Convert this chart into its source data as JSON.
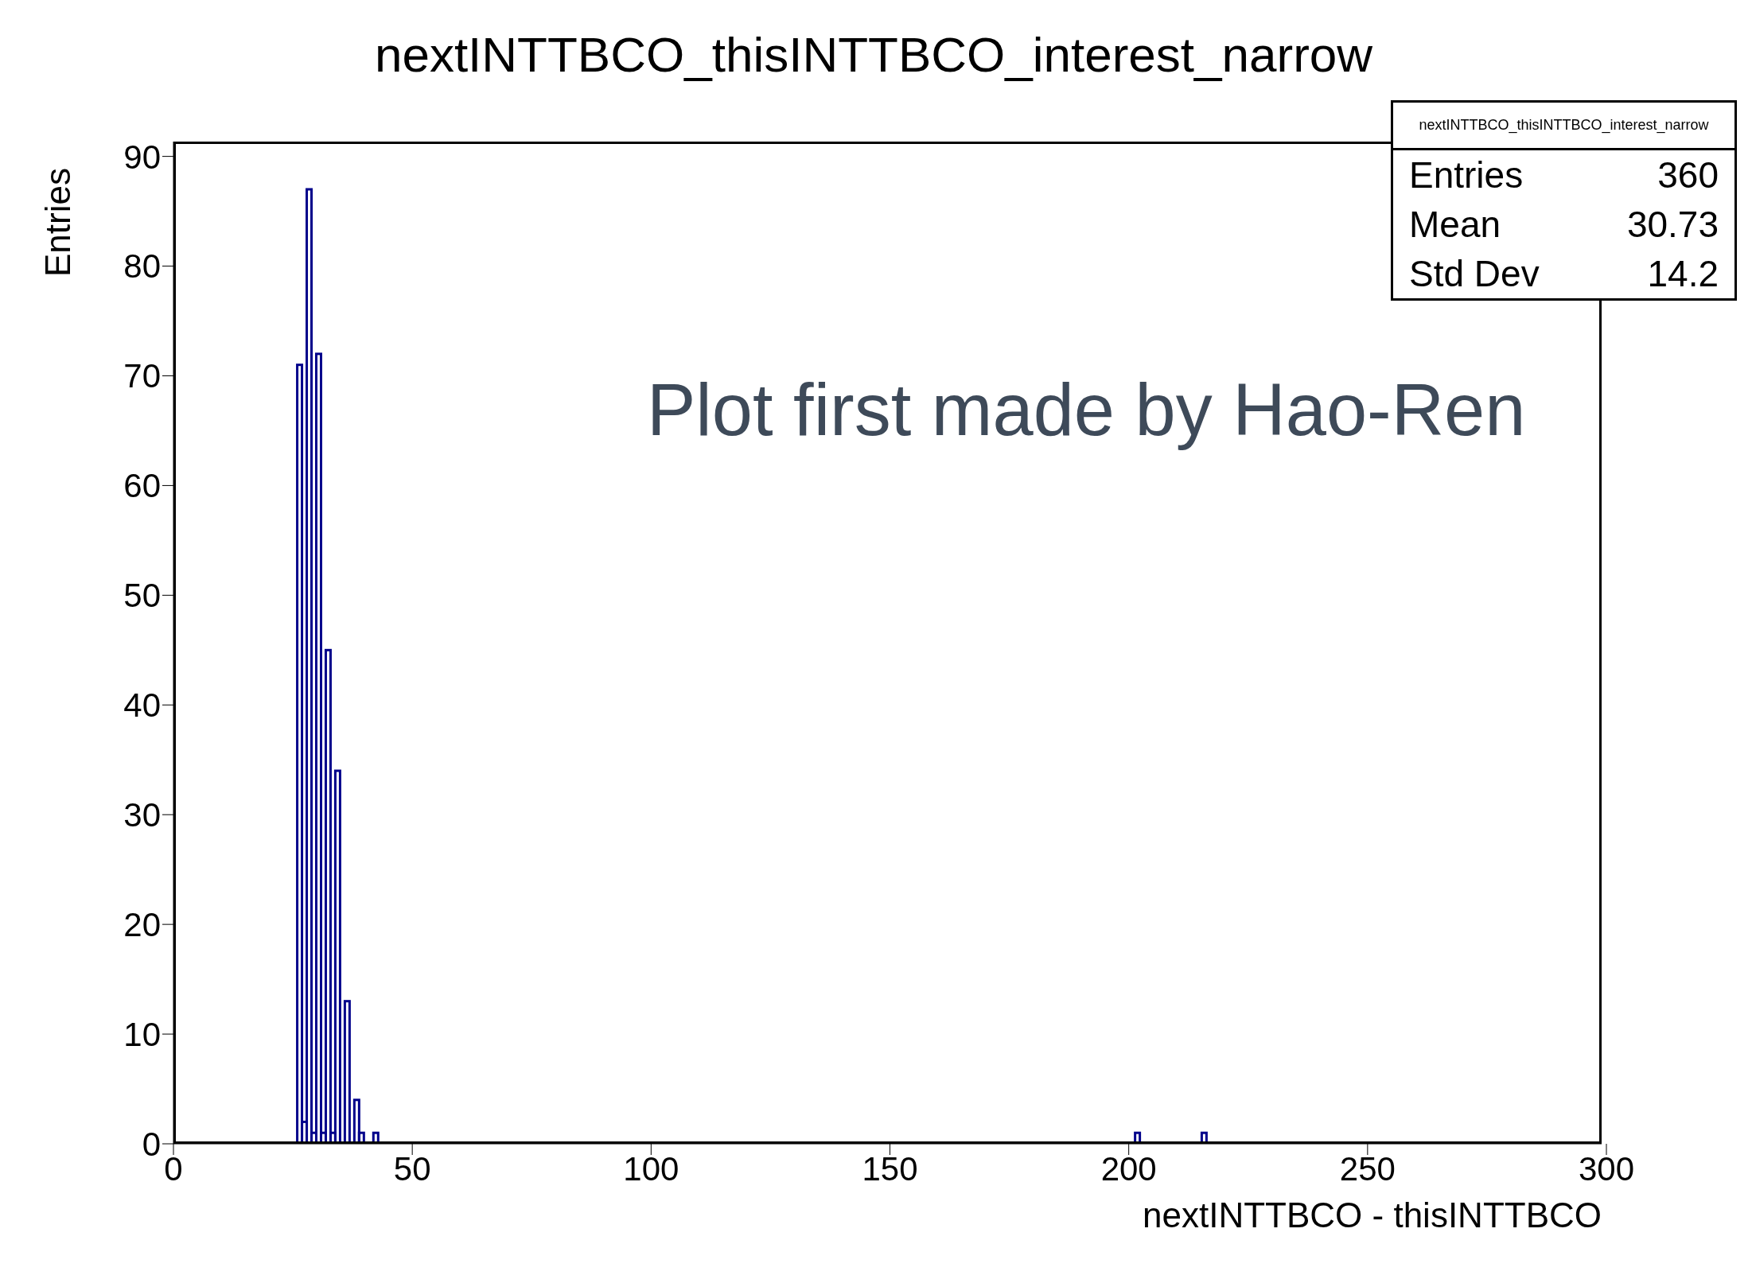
{
  "chart_data": {
    "type": "histogram",
    "title": "nextINTTBCO_thisINTTBCO_interest_narrow",
    "xlabel": "nextINTTBCO - thisINTTBCO",
    "ylabel": "Entries",
    "bins": [
      0,
      1,
      2,
      3,
      4,
      5,
      6,
      7,
      8,
      9,
      10,
      11,
      12,
      13,
      14,
      15,
      16,
      17,
      18,
      19,
      20,
      21,
      22,
      23,
      24,
      25,
      26,
      27,
      28,
      29,
      30,
      31,
      32,
      33,
      34,
      35,
      36,
      37,
      38,
      39,
      40,
      41,
      42,
      43,
      44,
      45,
      46,
      47,
      48,
      49,
      50,
      51,
      52,
      53,
      54,
      55,
      56,
      57,
      58,
      59,
      60,
      61,
      62,
      63,
      64,
      65,
      66,
      67,
      68,
      69,
      70,
      71,
      72,
      73,
      74,
      75,
      76,
      77,
      78,
      79,
      80,
      81,
      82,
      83,
      84,
      85,
      86,
      87,
      88,
      89,
      90,
      91,
      92,
      93,
      94,
      95,
      96,
      97,
      98,
      99,
      100,
      101,
      102,
      103,
      104,
      105,
      106,
      107,
      108,
      109,
      110,
      111,
      112,
      113,
      114,
      115,
      116,
      117,
      118,
      119,
      120,
      121,
      122,
      123,
      124,
      125,
      126,
      127,
      128,
      129,
      130,
      131,
      132,
      133,
      134,
      135,
      136,
      137,
      138,
      139,
      140,
      141,
      142,
      143,
      144,
      145,
      146,
      147,
      148,
      149,
      150,
      151,
      152,
      153,
      154,
      155,
      156,
      157,
      158,
      159,
      160,
      161,
      162,
      163,
      164,
      165,
      166,
      167,
      168,
      169,
      170,
      171,
      172,
      173,
      174,
      175,
      176,
      177,
      178,
      179,
      180,
      181,
      182,
      183,
      184,
      185,
      186,
      187,
      188,
      189,
      190,
      191,
      192,
      193,
      194,
      195,
      196,
      197,
      198,
      199,
      200,
      201,
      202,
      203,
      204,
      205,
      206,
      207,
      208,
      209,
      210,
      211,
      212,
      213,
      214,
      215,
      216,
      217,
      218,
      219,
      220,
      221,
      222,
      223,
      224,
      225,
      226,
      227,
      228,
      229,
      230,
      231,
      232,
      233,
      234,
      235,
      236,
      237,
      238,
      239,
      240,
      241,
      242,
      243,
      244,
      245,
      246,
      247,
      248,
      249,
      250,
      251,
      252,
      253,
      254,
      255,
      256,
      257,
      258,
      259,
      260,
      261,
      262,
      263,
      264,
      265,
      266,
      267,
      268,
      269,
      270,
      271,
      272,
      273,
      274,
      275,
      276,
      277,
      278,
      279,
      280,
      281,
      282,
      283,
      284,
      285,
      286,
      287,
      288,
      289,
      290,
      291,
      292,
      293,
      294,
      295,
      296,
      297,
      298,
      299,
      300
    ],
    "values": [
      0,
      0,
      0,
      0,
      0,
      0,
      0,
      0,
      0,
      0,
      0,
      0,
      0,
      0,
      0,
      0,
      0,
      0,
      0,
      0,
      0,
      0,
      0,
      0,
      0,
      0,
      71,
      2,
      87,
      1,
      72,
      1,
      45,
      1,
      34,
      0,
      13,
      0,
      4,
      1,
      0,
      0,
      1,
      0,
      0,
      0,
      0,
      0,
      0,
      0,
      0,
      0,
      0,
      0,
      0,
      0,
      0,
      0,
      0,
      0,
      0,
      0,
      0,
      0,
      0,
      0,
      0,
      0,
      0,
      0,
      0,
      0,
      0,
      0,
      0,
      0,
      0,
      0,
      0,
      0,
      0,
      0,
      0,
      0,
      0,
      0,
      0,
      0,
      0,
      0,
      0,
      0,
      0,
      0,
      0,
      0,
      0,
      0,
      0,
      0,
      0,
      0,
      0,
      0,
      0,
      0,
      0,
      0,
      0,
      0,
      0,
      0,
      0,
      0,
      0,
      0,
      0,
      0,
      0,
      0,
      0,
      0,
      0,
      0,
      0,
      0,
      0,
      0,
      0,
      0,
      0,
      0,
      0,
      0,
      0,
      0,
      0,
      0,
      0,
      0,
      0,
      0,
      0,
      0,
      0,
      0,
      0,
      0,
      0,
      0,
      0,
      0,
      0,
      0,
      0,
      0,
      0,
      0,
      0,
      0,
      0,
      0,
      0,
      0,
      0,
      0,
      0,
      0,
      0,
      0,
      0,
      0,
      0,
      0,
      0,
      0,
      0,
      0,
      0,
      0,
      0,
      0,
      0,
      0,
      0,
      0,
      0,
      0,
      0,
      0,
      0,
      0,
      0,
      0,
      0,
      0,
      0,
      0,
      0,
      0,
      0,
      0,
      1,
      0,
      0,
      0,
      0,
      0,
      0,
      0,
      0,
      0,
      0,
      0,
      0,
      0,
      1,
      0,
      0,
      0,
      0,
      0,
      0,
      0,
      0,
      0,
      0,
      0,
      0,
      0,
      0,
      0,
      0,
      0,
      0,
      0,
      0,
      0,
      0,
      0,
      0,
      0,
      0,
      0,
      0,
      0,
      0,
      0,
      0,
      0,
      0,
      0,
      0,
      0,
      0,
      0,
      0,
      0,
      0,
      0,
      0,
      0,
      0,
      0,
      0,
      0,
      0,
      0,
      0,
      0,
      0,
      0,
      0,
      0,
      0,
      0,
      0,
      0,
      0,
      0,
      0,
      0,
      0,
      0,
      0,
      0,
      0,
      0,
      0,
      0,
      0,
      0,
      0,
      0,
      0,
      0,
      0,
      0,
      0,
      0
    ],
    "color": "#00008b",
    "xlim": [
      0,
      300
    ],
    "xticks": [
      0,
      50,
      100,
      150,
      200,
      250,
      300
    ],
    "ylim": [
      0,
      91.35
    ],
    "yticks": [
      0,
      10,
      20,
      30,
      40,
      50,
      60,
      70,
      80,
      90
    ],
    "annotations": [
      "nextINTTBCO_thisINTTBCO_interest_narrow",
      "Entries",
      "360",
      "Mean",
      "30.73",
      "Std Dev",
      "14.2",
      "Plot first made by Hao-Ren"
    ]
  }
}
